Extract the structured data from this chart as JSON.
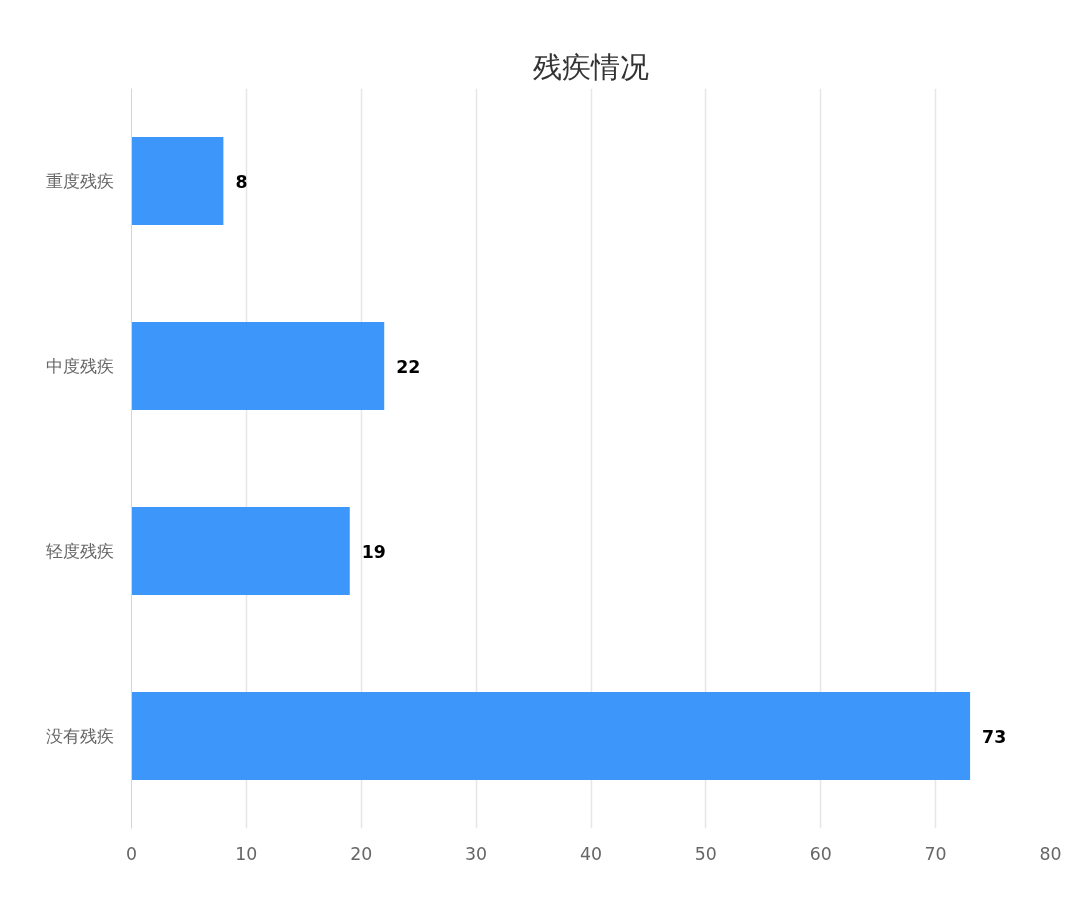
{
  "chart_data": {
    "type": "bar",
    "orientation": "horizontal",
    "title": "残疾情况",
    "categories": [
      "重度残疾",
      "中度残疾",
      "轻度残疾",
      "没有残疾"
    ],
    "values": [
      8,
      22,
      19,
      73
    ],
    "color": "#3d96fa",
    "xlim": [
      0,
      80
    ],
    "xticks": [
      0,
      10,
      20,
      30,
      40,
      50,
      60,
      70,
      80
    ],
    "grid": "x",
    "data_labels": true
  }
}
